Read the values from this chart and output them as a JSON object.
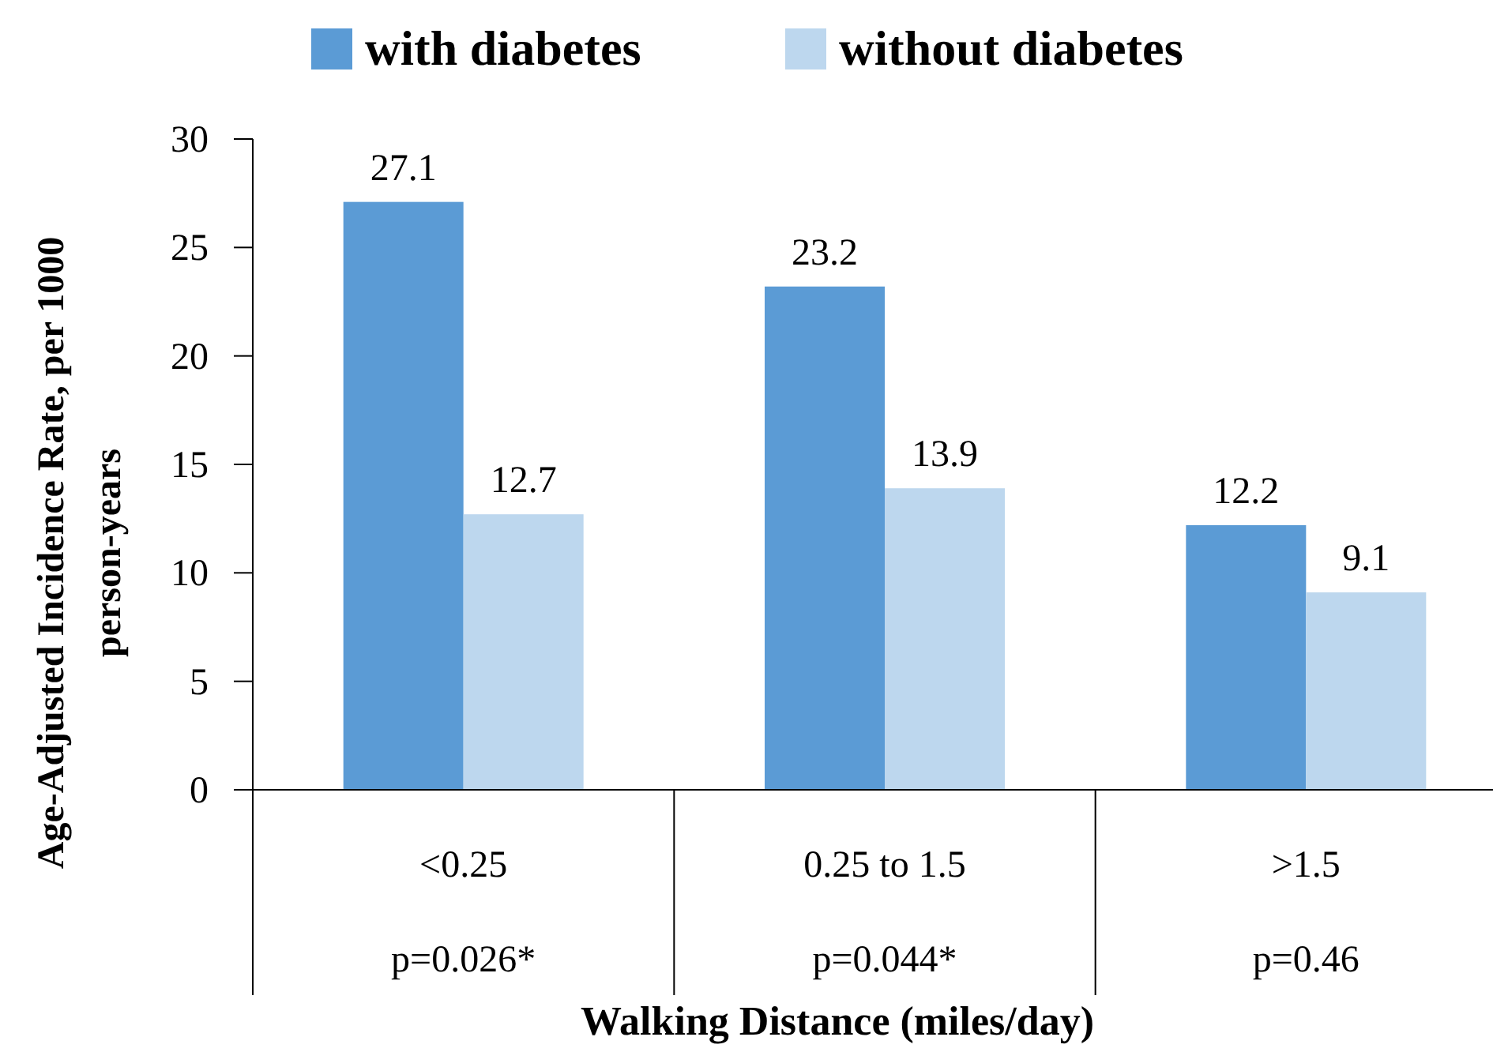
{
  "chart_data": {
    "type": "bar",
    "xlabel": "Walking Distance (miles/day)",
    "ylabel": "Age-Adjusted Incidence Rate, per 1000 person-years",
    "categories": [
      "<0.25",
      "0.25 to 1.5",
      ">1.5"
    ],
    "series": [
      {
        "name": "with diabetes",
        "color": "#5b9bd5",
        "values": [
          27.1,
          23.2,
          12.2
        ]
      },
      {
        "name": "without diabetes",
        "color": "#bdd7ee",
        "values": [
          12.7,
          13.9,
          9.1
        ]
      }
    ],
    "ylim": [
      0,
      30
    ],
    "yticks": [
      0,
      5,
      10,
      15,
      20,
      25,
      30
    ],
    "data_labels": true,
    "legend": "top",
    "grid": false,
    "annotations": [
      "p=0.026*",
      "p=0.044*",
      "p=0.46"
    ]
  }
}
